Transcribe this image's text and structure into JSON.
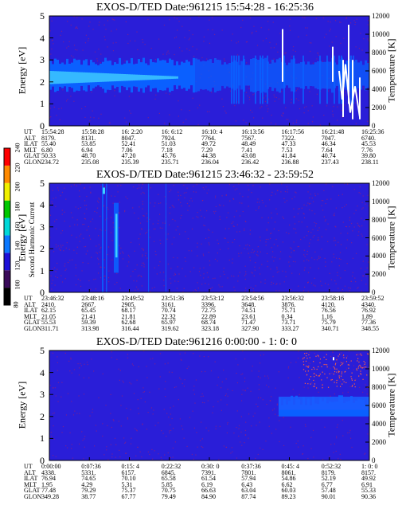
{
  "chart_data": [
    {
      "type": "heatmap",
      "title": "EXOS-D/TED   Date:961215  15:54:28 - 16:25:36",
      "ylabel": "Energy [eV]",
      "y2label": "Temperature [K]",
      "ylim": [
        0,
        5
      ],
      "y2lim": [
        0,
        12000
      ],
      "yticks": [
        "0",
        "1",
        "2",
        "3",
        "4",
        "5"
      ],
      "y2ticks": [
        "0",
        "2000",
        "4000",
        "6000",
        "8000",
        "10000",
        "12000"
      ],
      "ephemeris_labels": [
        "UT",
        "ALT",
        "ILAT",
        "MLT",
        "GLAT",
        "GLON"
      ],
      "ephemeris": [
        [
          "15:54:28",
          "8179.",
          "55.40",
          "6.80",
          "50.33",
          "234.72"
        ],
        [
          "15:58:28",
          "8131.",
          "53.85",
          "6.94",
          "48.70",
          "235.08"
        ],
        [
          "16: 2:20",
          "8047.",
          "52.41",
          "7.06",
          "47.20",
          "235.39"
        ],
        [
          "16: 6:12",
          "7924.",
          "51.03",
          "7.18",
          "45.76",
          "235.71"
        ],
        [
          "16:10: 4",
          "7764.",
          "49.72",
          "7.29",
          "44.38",
          "236.04"
        ],
        [
          "16:13:56",
          "7567.",
          "48.49",
          "7.41",
          "43.08",
          "236.42"
        ],
        [
          "16:17:56",
          "7322.",
          "47.33",
          "7.53",
          "41.84",
          "236.88"
        ],
        [
          "16:21:48",
          "7047.",
          "46.34",
          "7.64",
          "40.74",
          "237.43"
        ],
        [
          "16:25:36",
          "6740.",
          "45.53",
          "7.76",
          "39.80",
          "238.11"
        ]
      ]
    },
    {
      "type": "heatmap",
      "title": "EXOS-D/TED   Date:961215  23:46:32 - 23:59:52",
      "ylabel": "Energy [eV]",
      "y2label": "Temperature [K]",
      "ylim": [
        0,
        5
      ],
      "y2lim": [
        0,
        12000
      ],
      "yticks": [
        "0",
        "1",
        "2",
        "3",
        "4",
        "5"
      ],
      "y2ticks": [
        "0",
        "2000",
        "4000",
        "6000",
        "8000",
        "10000",
        "12000"
      ],
      "ephemeris_labels": [
        "UT",
        "ALT",
        "ILAT",
        "MLT",
        "GLAT",
        "GLON"
      ],
      "ephemeris": [
        [
          "23:46:32",
          "2410.",
          "62.15",
          "21.05",
          "55.53",
          "311.71"
        ],
        [
          "23:48:16",
          "2667.",
          "65.45",
          "21.41",
          "59.39",
          "313.98"
        ],
        [
          "23:49:52",
          "2905.",
          "68.17",
          "21.81",
          "62.68",
          "316.44"
        ],
        [
          "23:51:36",
          "3161.",
          "70.74",
          "22.32",
          "65.97",
          "319.62"
        ],
        [
          "23:53:12",
          "3396.",
          "72.75",
          "22.89",
          "68.74",
          "323.18"
        ],
        [
          "23:54:56",
          "3648.",
          "74.51",
          "23.61",
          "71.47",
          "327.90"
        ],
        [
          "23:56:32",
          "3876.",
          "75.71",
          "0.34",
          "73.71",
          "333.27"
        ],
        [
          "23:58:16",
          "4120.",
          "76.56",
          "1.16",
          "75.79",
          "340.71"
        ],
        [
          "23:59:52",
          "4340.",
          "76.92",
          "1.89",
          "77.36",
          "348.55"
        ]
      ]
    },
    {
      "type": "heatmap",
      "title": "EXOS-D/TED   Date:961216  0:00:00 - 1: 0: 0",
      "ylabel": "Energy [eV]",
      "y2label": "Temperature [K]",
      "ylim": [
        0,
        5
      ],
      "y2lim": [
        0,
        12000
      ],
      "yticks": [
        "0",
        "1",
        "2",
        "3",
        "4",
        "5"
      ],
      "y2ticks": [
        "0",
        "2000",
        "4000",
        "6000",
        "8000",
        "10000",
        "12000"
      ],
      "ephemeris_labels": [
        "UT",
        "ALT",
        "ILAT",
        "MLT",
        "GLAT",
        "GLON"
      ],
      "ephemeris": [
        [
          "0:00:00",
          "4338.",
          "76.94",
          "1.95",
          "77.48",
          "349.28"
        ],
        [
          "0:07:36",
          "5331.",
          "74.65",
          "4.29",
          "79.29",
          "38.77"
        ],
        [
          "0:15: 4",
          "6157.",
          "70.10",
          "5.31",
          "75.37",
          "67.77"
        ],
        [
          "0:22:32",
          "6845.",
          "65.58",
          "5.85",
          "70.75",
          "79.49"
        ],
        [
          "0:30: 0",
          "7391.",
          "61.54",
          "6.19",
          "66.63",
          "84.90"
        ],
        [
          "0:37:36",
          "7801.",
          "57.94",
          "6.43",
          "63.04",
          "87.74"
        ],
        [
          "0:45: 4",
          "8061.",
          "54.86",
          "6.62",
          "60.03",
          "89.23"
        ],
        [
          "0:52:32",
          "8179.",
          "52.19",
          "6.77",
          "57.48",
          "90.01"
        ],
        [
          "1: 0: 0",
          "8157.",
          "49.92",
          "6.91",
          "55.33",
          "90.36"
        ]
      ]
    }
  ],
  "colorbar": {
    "title": "Second Harmonic Current",
    "ticks": [
      "80",
      "100",
      "120",
      "140",
      "160",
      "180",
      "200",
      "220",
      "240"
    ],
    "colors": [
      "#000000",
      "#3a0a5a",
      "#1d10d8",
      "#0a78ff",
      "#00d8d8",
      "#00c800",
      "#f0f000",
      "#ff8a00",
      "#ff0000"
    ]
  },
  "colors": {
    "background": "#2a1ed8",
    "band": "#0a60ff",
    "band_core": "#40d0ff",
    "noise": "#b02060"
  }
}
